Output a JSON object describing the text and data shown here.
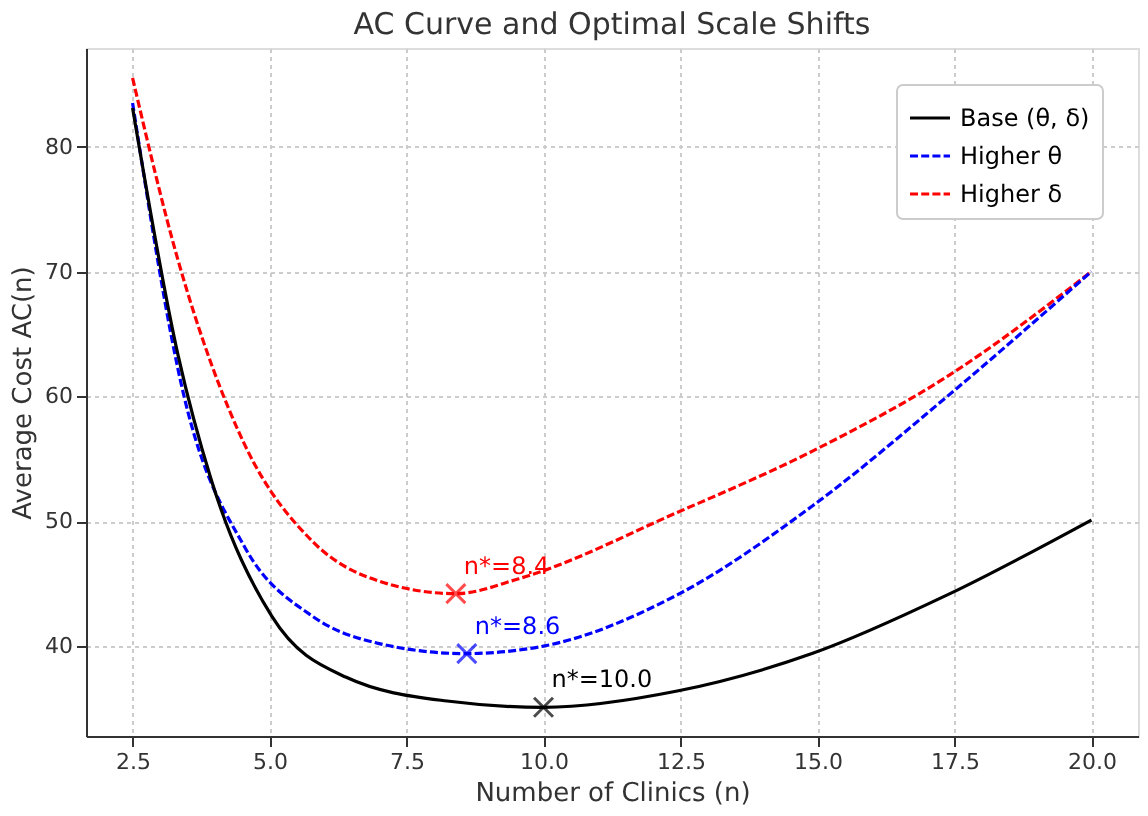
{
  "chart_data": {
    "type": "line",
    "title": "AC Curve and Optimal Scale Shifts",
    "xlabel": "Number of Clinics (n)",
    "ylabel": "Average Cost AC(n)",
    "xlim": [
      1.65,
      20.85
    ],
    "ylim": [
      32.8,
      87.9
    ],
    "xticks": [
      {
        "value": 2.5,
        "label": "2.5"
      },
      {
        "value": 5,
        "label": "5.0"
      },
      {
        "value": 7.5,
        "label": "7.5"
      },
      {
        "value": 10,
        "label": "10.0"
      },
      {
        "value": 12.5,
        "label": "12.5"
      },
      {
        "value": 15,
        "label": "15.0"
      },
      {
        "value": 17.5,
        "label": "17.5"
      },
      {
        "value": 20,
        "label": "20.0"
      }
    ],
    "yticks": [
      40,
      50,
      60,
      70,
      80
    ],
    "grid": true,
    "legend": "top right",
    "series": [
      {
        "name": "Base (θ, δ)",
        "line_style": "solid",
        "color": "#000000",
        "x": [
          2.5,
          3.33,
          3.93,
          5.04,
          6.4,
          8.24,
          10,
          12.44,
          14.9,
          17.37,
          20
        ],
        "values": [
          83.1,
          63.3,
          53.4,
          42.4,
          37.5,
          35.6,
          35.1,
          36.4,
          39.4,
          44.1,
          50.1
        ]
      },
      {
        "name": "Higher θ",
        "line_style": "dashed",
        "color": "#0000ff",
        "x": [
          2.5,
          3.44,
          4.55,
          5.78,
          7.0,
          8.57,
          10,
          12.44,
          14.9,
          17.37,
          20
        ],
        "values": [
          83.5,
          60.0,
          47.9,
          42.4,
          40.2,
          39.4,
          40.0,
          44.1,
          51.2,
          60.0,
          70.0
        ]
      },
      {
        "name": "Higher δ",
        "line_style": "dashed",
        "color": "#ff0000",
        "x": [
          2.5,
          3.33,
          4.55,
          5.78,
          7.0,
          8.4,
          9.55,
          12.44,
          14.9,
          17.37,
          20
        ],
        "values": [
          85.5,
          70.9,
          56.1,
          48.4,
          45.2,
          44.2,
          45.4,
          50.7,
          55.6,
          61.6,
          70.0
        ]
      },
      {
        "type": "scatter",
        "marker": "cross",
        "color": "#000000",
        "x": [
          10.0
        ],
        "values": [
          35.1
        ]
      },
      {
        "type": "scatter",
        "marker": "cross",
        "color": "#0000ff",
        "x": [
          8.6
        ],
        "values": [
          39.4
        ]
      },
      {
        "type": "scatter",
        "marker": "cross",
        "color": "#ff0000",
        "x": [
          8.4
        ],
        "values": [
          44.2
        ]
      }
    ],
    "annotations": [
      {
        "text": "n*=10.0",
        "x": 10.0,
        "y": 35.1
      },
      {
        "text": "n*=8.6",
        "x": 8.6,
        "y": 39.4
      },
      {
        "text": "n*=8.4",
        "x": 8.4,
        "y": 44.2
      }
    ]
  }
}
